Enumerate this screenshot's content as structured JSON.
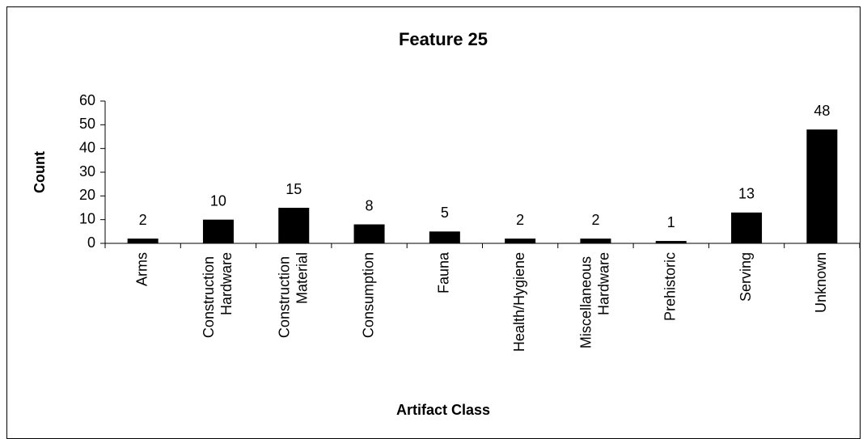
{
  "chart_data": {
    "type": "bar",
    "title": "Feature 25",
    "x_label": "Artifact Class",
    "y_label": "Count",
    "categories": [
      "Arms",
      "Construction Hardware",
      "Construction Material",
      "Consumption",
      "Fauna",
      "Health/Hygiene",
      "Miscellaneous Hardware",
      "Prehistoric",
      "Serving",
      "Unknown"
    ],
    "values": [
      2,
      10,
      15,
      8,
      5,
      2,
      2,
      1,
      13,
      48
    ],
    "color": "#000000",
    "ylim": [
      0,
      60
    ],
    "yticks": [
      0,
      10,
      20,
      30,
      40,
      50,
      60
    ],
    "grid": false
  }
}
